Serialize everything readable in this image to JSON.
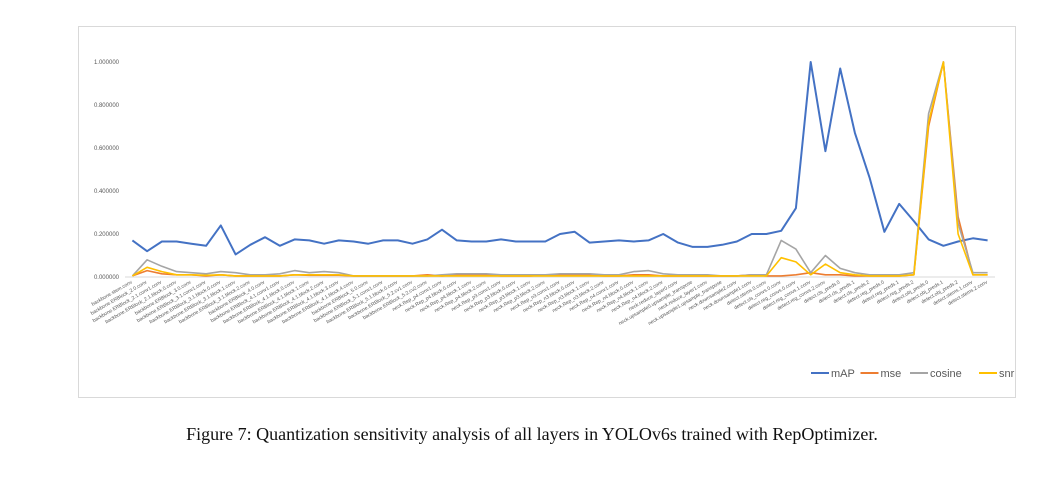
{
  "chart_data": {
    "type": "line",
    "title": "",
    "xlabel": "",
    "ylabel": "",
    "ylim": [
      0,
      1.0
    ],
    "yticks": [
      0,
      0.2,
      0.4,
      0.6,
      0.8,
      1.0
    ],
    "ytick_labels": [
      "0.000000",
      "0.200000",
      "0.400000",
      "0.600000",
      "0.800000",
      "1.000000"
    ],
    "grid": false,
    "legend_position": "bottom-right",
    "categories": [
      "backbone.stem.conv",
      "backbone.ERBlock_2.0.conv",
      "backbone.ERBlock_2.1.conv1.conv",
      "backbone.ERBlock_2.1.block.0.conv",
      "backbone.ERBlock_3.0.conv",
      "backbone.ERBlock_3.1.conv1.conv",
      "backbone.ERBlock_3.1.block.0.conv",
      "backbone.ERBlock_3.1.block.1.conv",
      "backbone.ERBlock_3.1.block.2.conv",
      "backbone.ERBlock_4.0.conv",
      "backbone.ERBlock_4.1.conv1.conv",
      "backbone.ERBlock_4.1.block.0.conv",
      "backbone.ERBlock_4.1.block.1.conv",
      "backbone.ERBlock_4.1.block.2.conv",
      "backbone.ERBlock_4.1.block.3.conv",
      "backbone.ERBlock_4.1.block.4.conv",
      "backbone.ERBlock_5.0.conv",
      "backbone.ERBlock_5.1.conv1.conv",
      "backbone.ERBlock_5.1.block.0.conv",
      "backbone.ERBlock_5.2.cv1.conv",
      "backbone.ERBlock_5.2.cv2.conv",
      "neck.Rep_p4.conv1.conv",
      "neck.Rep_p4.block.0.conv",
      "neck.Rep_p4.block.1.conv",
      "neck.Rep_p4.block.2.conv",
      "neck.Rep_p3.conv1.conv",
      "neck.Rep_p3.block.0.conv",
      "neck.Rep_p3.block.1.conv",
      "neck.Rep_p3.block.2.conv",
      "neck.Rep_n3.conv1.conv",
      "neck.Rep_n3.block.0.conv",
      "neck.Rep_n3.block.1.conv",
      "neck.Rep_n3.block.2.conv",
      "neck.Rep_n4.conv1.conv",
      "neck.Rep_n4.block.0.conv",
      "neck.Rep_n4.block.1.conv",
      "neck.Rep_n4.block.2.conv",
      "neck.reduce_layer0.conv",
      "neck.upsample0.upsample_transpose",
      "neck.reduce_layer1.conv",
      "neck.upsample1.upsample_transpose",
      "neck.downsample2.conv",
      "neck.downsample1.conv",
      "detect.stems.0.conv",
      "detect.cls_convs.0.conv",
      "detect.reg_convs.0.conv",
      "detect.reg_convs.1.conv",
      "detect.reg_convs.2.conv",
      "detect.cls_preds.0",
      "detect.cls_preds.1",
      "detect.cls_preds.2",
      "detect.reg_preds.0",
      "detect.reg_preds.1",
      "detect.reg_preds.2",
      "detect.obj_preds.0",
      "detect.obj_preds.1",
      "detect.obj_preds.2",
      "detect.stems.1.conv",
      "detect.stems.2.conv"
    ],
    "series": [
      {
        "name": "mAP",
        "color": "#4472C4",
        "values": [
          0.17,
          0.12,
          0.165,
          0.165,
          0.155,
          0.145,
          0.24,
          0.105,
          0.15,
          0.185,
          0.145,
          0.175,
          0.17,
          0.155,
          0.17,
          0.165,
          0.155,
          0.17,
          0.17,
          0.155,
          0.175,
          0.22,
          0.17,
          0.165,
          0.165,
          0.175,
          0.165,
          0.165,
          0.165,
          0.2,
          0.21,
          0.16,
          0.165,
          0.17,
          0.165,
          0.17,
          0.2,
          0.16,
          0.14,
          0.14,
          0.15,
          0.165,
          0.2,
          0.2,
          0.215,
          0.32,
          1.0,
          0.585,
          0.97,
          0.67,
          0.46,
          0.21,
          0.34,
          0.26,
          0.175,
          0.145,
          0.165,
          0.18,
          0.17
        ]
      },
      {
        "name": "mse",
        "color": "#ED7D31",
        "values": [
          0.005,
          0.03,
          0.015,
          0.01,
          0.01,
          0.005,
          0.01,
          0.005,
          0.005,
          0.005,
          0.005,
          0.01,
          0.008,
          0.008,
          0.008,
          0.005,
          0.005,
          0.005,
          0.005,
          0.005,
          0.01,
          0.005,
          0.01,
          0.01,
          0.01,
          0.005,
          0.005,
          0.005,
          0.01,
          0.01,
          0.01,
          0.008,
          0.005,
          0.005,
          0.01,
          0.01,
          0.005,
          0.005,
          0.005,
          0.005,
          0.005,
          0.005,
          0.01,
          0.005,
          0.005,
          0.01,
          0.02,
          0.01,
          0.01,
          0.005,
          0.005,
          0.005,
          0.005,
          0.01,
          0.7,
          1.0,
          0.28,
          0.01,
          0.01
        ]
      },
      {
        "name": "cosine",
        "color": "#A5A5A5",
        "values": [
          0.005,
          0.08,
          0.05,
          0.025,
          0.02,
          0.015,
          0.025,
          0.02,
          0.01,
          0.01,
          0.015,
          0.03,
          0.02,
          0.025,
          0.02,
          0.005,
          0.005,
          0.005,
          0.005,
          0.005,
          0.005,
          0.01,
          0.015,
          0.015,
          0.015,
          0.01,
          0.01,
          0.01,
          0.01,
          0.015,
          0.015,
          0.015,
          0.01,
          0.01,
          0.025,
          0.03,
          0.015,
          0.01,
          0.01,
          0.01,
          0.005,
          0.005,
          0.01,
          0.01,
          0.17,
          0.13,
          0.02,
          0.1,
          0.04,
          0.02,
          0.01,
          0.01,
          0.01,
          0.02,
          0.76,
          1.0,
          0.25,
          0.02,
          0.02
        ]
      },
      {
        "name": "snr",
        "color": "#FFC000",
        "values": [
          0.005,
          0.045,
          0.025,
          0.01,
          0.01,
          0.008,
          0.01,
          0.005,
          0.005,
          0.005,
          0.005,
          0.01,
          0.01,
          0.01,
          0.01,
          0.005,
          0.005,
          0.005,
          0.005,
          0.005,
          0.005,
          0.005,
          0.005,
          0.005,
          0.005,
          0.005,
          0.005,
          0.005,
          0.005,
          0.005,
          0.005,
          0.005,
          0.005,
          0.005,
          0.005,
          0.005,
          0.005,
          0.005,
          0.005,
          0.005,
          0.005,
          0.005,
          0.005,
          0.005,
          0.09,
          0.07,
          0.01,
          0.06,
          0.02,
          0.01,
          0.005,
          0.005,
          0.005,
          0.01,
          0.72,
          1.0,
          0.2,
          0.01,
          0.01
        ]
      }
    ]
  },
  "caption": "Figure 7: Quantization sensitivity analysis of all layers in YOLOv6s trained with RepOptimizer."
}
